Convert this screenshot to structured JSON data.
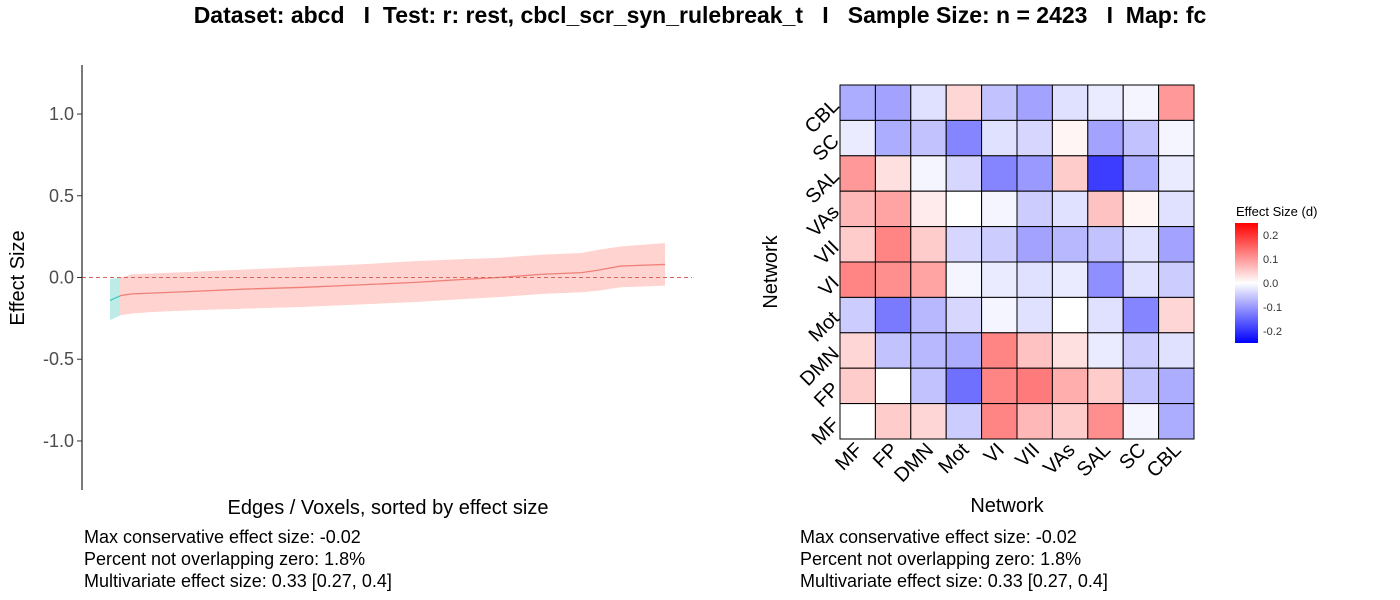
{
  "title": "Dataset: abcd   I  Test: r: rest, cbcl_scr_syn_rulebreak_t   I   Sample Size: n = 2423   I  Map: fc",
  "left_panel": {
    "caption": [
      "Max conservative effect size: -0.02",
      "Percent not overlapping zero: 1.8%",
      "Multivariate effect size: 0.33 [0.27, 0.4]"
    ]
  },
  "right_panel": {
    "caption": [
      "Max conservative effect size: -0.02",
      "Percent not overlapping zero: 1.8%",
      "Multivariate effect size: 0.33 [0.27, 0.4]"
    ]
  },
  "colors": {
    "ci_overlap": "#ffd3d0",
    "ci_nonoverlap": "#bdece8",
    "line_overlap": "#f08078",
    "line_nonoverlap": "#4cc9c0",
    "zero_line": "#d9645d",
    "heat_low": "#0000ff",
    "heat_mid": "#ffffff",
    "heat_high": "#ff0000"
  },
  "chart_data": [
    {
      "type": "area",
      "xlabel": "Edges / Voxels, sorted by effect size",
      "ylabel": "Effect Size",
      "ylim": [
        -1.3,
        1.3
      ],
      "yticks": [
        -1.0,
        -0.5,
        0.0,
        0.5,
        1.0
      ],
      "ytick_labels": [
        "-1.0",
        "-0.5",
        "0.0",
        "0.5",
        "1.0"
      ],
      "xlim": [
        0,
        1
      ],
      "reference_line": 0,
      "grid": false,
      "series": [
        {
          "x": [
            0,
            0.02,
            0.04,
            0.08,
            0.15,
            0.25,
            0.35,
            0.45,
            0.55,
            0.62,
            0.7,
            0.78,
            0.85,
            0.88,
            0.92,
            0.96,
            1.0
          ],
          "y": [
            -0.14,
            -0.11,
            -0.1,
            -0.095,
            -0.085,
            -0.07,
            -0.06,
            -0.045,
            -0.03,
            -0.015,
            0.0,
            0.02,
            0.03,
            0.045,
            0.07,
            0.075,
            0.08
          ],
          "lower": [
            -0.26,
            -0.23,
            -0.22,
            -0.21,
            -0.2,
            -0.19,
            -0.18,
            -0.165,
            -0.15,
            -0.135,
            -0.12,
            -0.1,
            -0.09,
            -0.08,
            -0.06,
            -0.055,
            -0.05
          ],
          "upper": [
            -0.01,
            0.0,
            0.02,
            0.025,
            0.035,
            0.05,
            0.065,
            0.08,
            0.1,
            0.11,
            0.12,
            0.14,
            0.15,
            0.17,
            0.19,
            0.2,
            0.21
          ]
        }
      ],
      "nonoverlap_fraction": 0.018
    },
    {
      "type": "heatmap",
      "xlabel": "Network",
      "ylabel": "Network",
      "x_categories": [
        "MF",
        "FP",
        "DMN",
        "Mot",
        "VI",
        "VII",
        "VAs",
        "SAL",
        "SC",
        "CBL"
      ],
      "y_categories": [
        "MF",
        "FP",
        "DMN",
        "Mot",
        "VI",
        "VII",
        "VAs",
        "SAL",
        "SC",
        "CBL"
      ],
      "legend_title": "Effect Size (d)",
      "legend_placement": "right",
      "scale_range": [
        -0.25,
        0.25
      ],
      "legend_ticks": [
        0.2,
        0.1,
        0.0,
        -0.1,
        -0.2
      ],
      "legend_tick_labels": [
        "0.2",
        "0.1",
        "0.0",
        "-0.1",
        "-0.2"
      ],
      "rows": [
        {
          "y": "CBL",
          "values": [
            -0.08,
            -0.09,
            -0.03,
            0.04,
            -0.06,
            -0.09,
            -0.03,
            -0.02,
            -0.01,
            0.1
          ]
        },
        {
          "y": "SC",
          "values": [
            -0.02,
            -0.08,
            -0.06,
            -0.12,
            -0.03,
            -0.04,
            0.01,
            -0.09,
            -0.06,
            -0.01
          ]
        },
        {
          "y": "SAL",
          "values": [
            0.1,
            0.03,
            -0.01,
            -0.04,
            -0.12,
            -0.1,
            0.05,
            -0.19,
            -0.08,
            -0.02
          ]
        },
        {
          "y": "VAs",
          "values": [
            0.07,
            0.09,
            0.02,
            0.0,
            -0.01,
            -0.05,
            -0.03,
            0.06,
            0.01,
            -0.03
          ]
        },
        {
          "y": "VII",
          "values": [
            0.05,
            0.12,
            0.05,
            -0.04,
            -0.05,
            -0.09,
            -0.07,
            -0.06,
            -0.03,
            -0.09
          ]
        },
        {
          "y": "VI",
          "values": [
            0.12,
            0.11,
            0.09,
            -0.01,
            -0.02,
            -0.03,
            -0.02,
            -0.11,
            -0.03,
            -0.05
          ]
        },
        {
          "y": "Mot",
          "values": [
            -0.05,
            -0.13,
            -0.07,
            -0.04,
            -0.01,
            -0.03,
            0.0,
            -0.03,
            -0.12,
            0.04
          ]
        },
        {
          "y": "DMN",
          "values": [
            0.04,
            -0.06,
            -0.07,
            -0.08,
            0.12,
            0.06,
            0.03,
            -0.02,
            -0.05,
            -0.03
          ]
        },
        {
          "y": "FP",
          "values": [
            0.05,
            0.0,
            -0.06,
            -0.14,
            0.12,
            0.13,
            0.08,
            0.05,
            -0.06,
            -0.08
          ]
        },
        {
          "y": "MF",
          "values": [
            0.0,
            0.05,
            0.04,
            -0.05,
            0.12,
            0.07,
            0.05,
            0.11,
            -0.01,
            -0.08
          ]
        }
      ]
    }
  ]
}
